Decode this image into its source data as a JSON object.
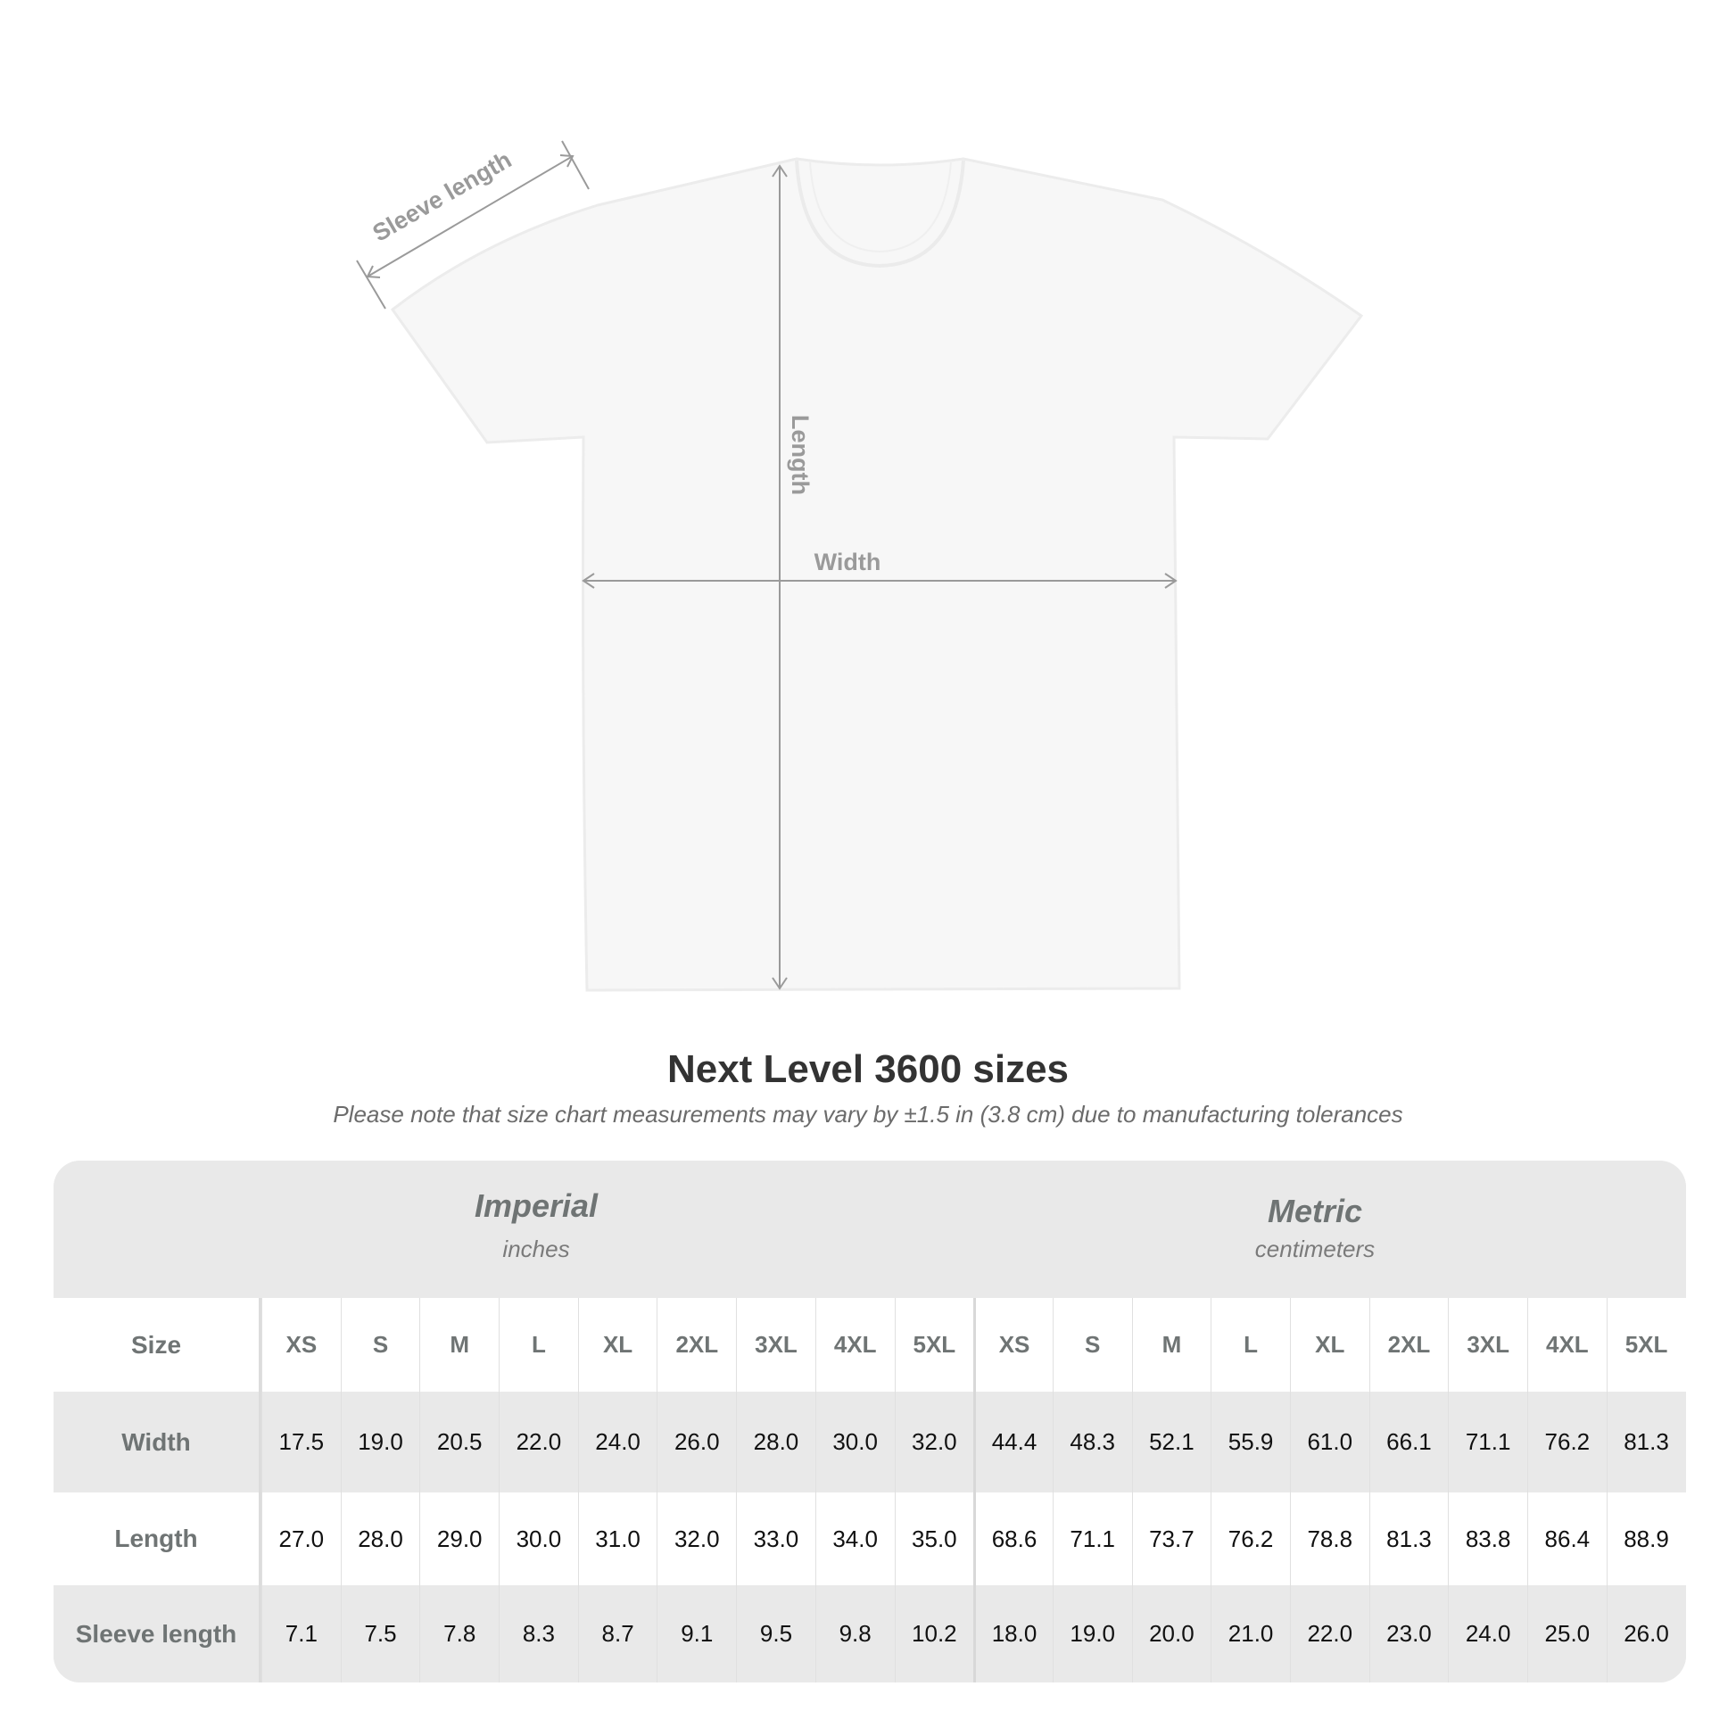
{
  "diagram": {
    "sleeve_label": "Sleeve length",
    "length_label": "Length",
    "width_label": "Width",
    "line_color": "#9a9a9a",
    "shirt_color": "#f7f7f7"
  },
  "title": "Next Level 3600 sizes",
  "subtitle": "Please note that size chart measurements may vary by ±1.5 in (3.8 cm) due to manufacturing tolerances",
  "table": {
    "imperial": {
      "name": "Imperial",
      "unit": "inches"
    },
    "metric": {
      "name": "Metric",
      "unit": "centimeters"
    },
    "size_label": "Size",
    "sizes": [
      "XS",
      "S",
      "M",
      "L",
      "XL",
      "2XL",
      "3XL",
      "4XL",
      "5XL"
    ],
    "rows": [
      {
        "label": "Width",
        "imperial": [
          "17.5",
          "19.0",
          "20.5",
          "22.0",
          "24.0",
          "26.0",
          "28.0",
          "30.0",
          "32.0"
        ],
        "metric": [
          "44.4",
          "48.3",
          "52.1",
          "55.9",
          "61.0",
          "66.1",
          "71.1",
          "76.2",
          "81.3"
        ]
      },
      {
        "label": "Length",
        "imperial": [
          "27.0",
          "28.0",
          "29.0",
          "30.0",
          "31.0",
          "32.0",
          "33.0",
          "34.0",
          "35.0"
        ],
        "metric": [
          "68.6",
          "71.1",
          "73.7",
          "76.2",
          "78.8",
          "81.3",
          "83.8",
          "86.4",
          "88.9"
        ]
      },
      {
        "label": "Sleeve length",
        "imperial": [
          "7.1",
          "7.5",
          "7.8",
          "8.3",
          "8.7",
          "9.1",
          "9.5",
          "9.8",
          "10.2"
        ],
        "metric": [
          "18.0",
          "19.0",
          "20.0",
          "21.0",
          "22.0",
          "23.0",
          "24.0",
          "25.0",
          "26.0"
        ]
      }
    ]
  }
}
